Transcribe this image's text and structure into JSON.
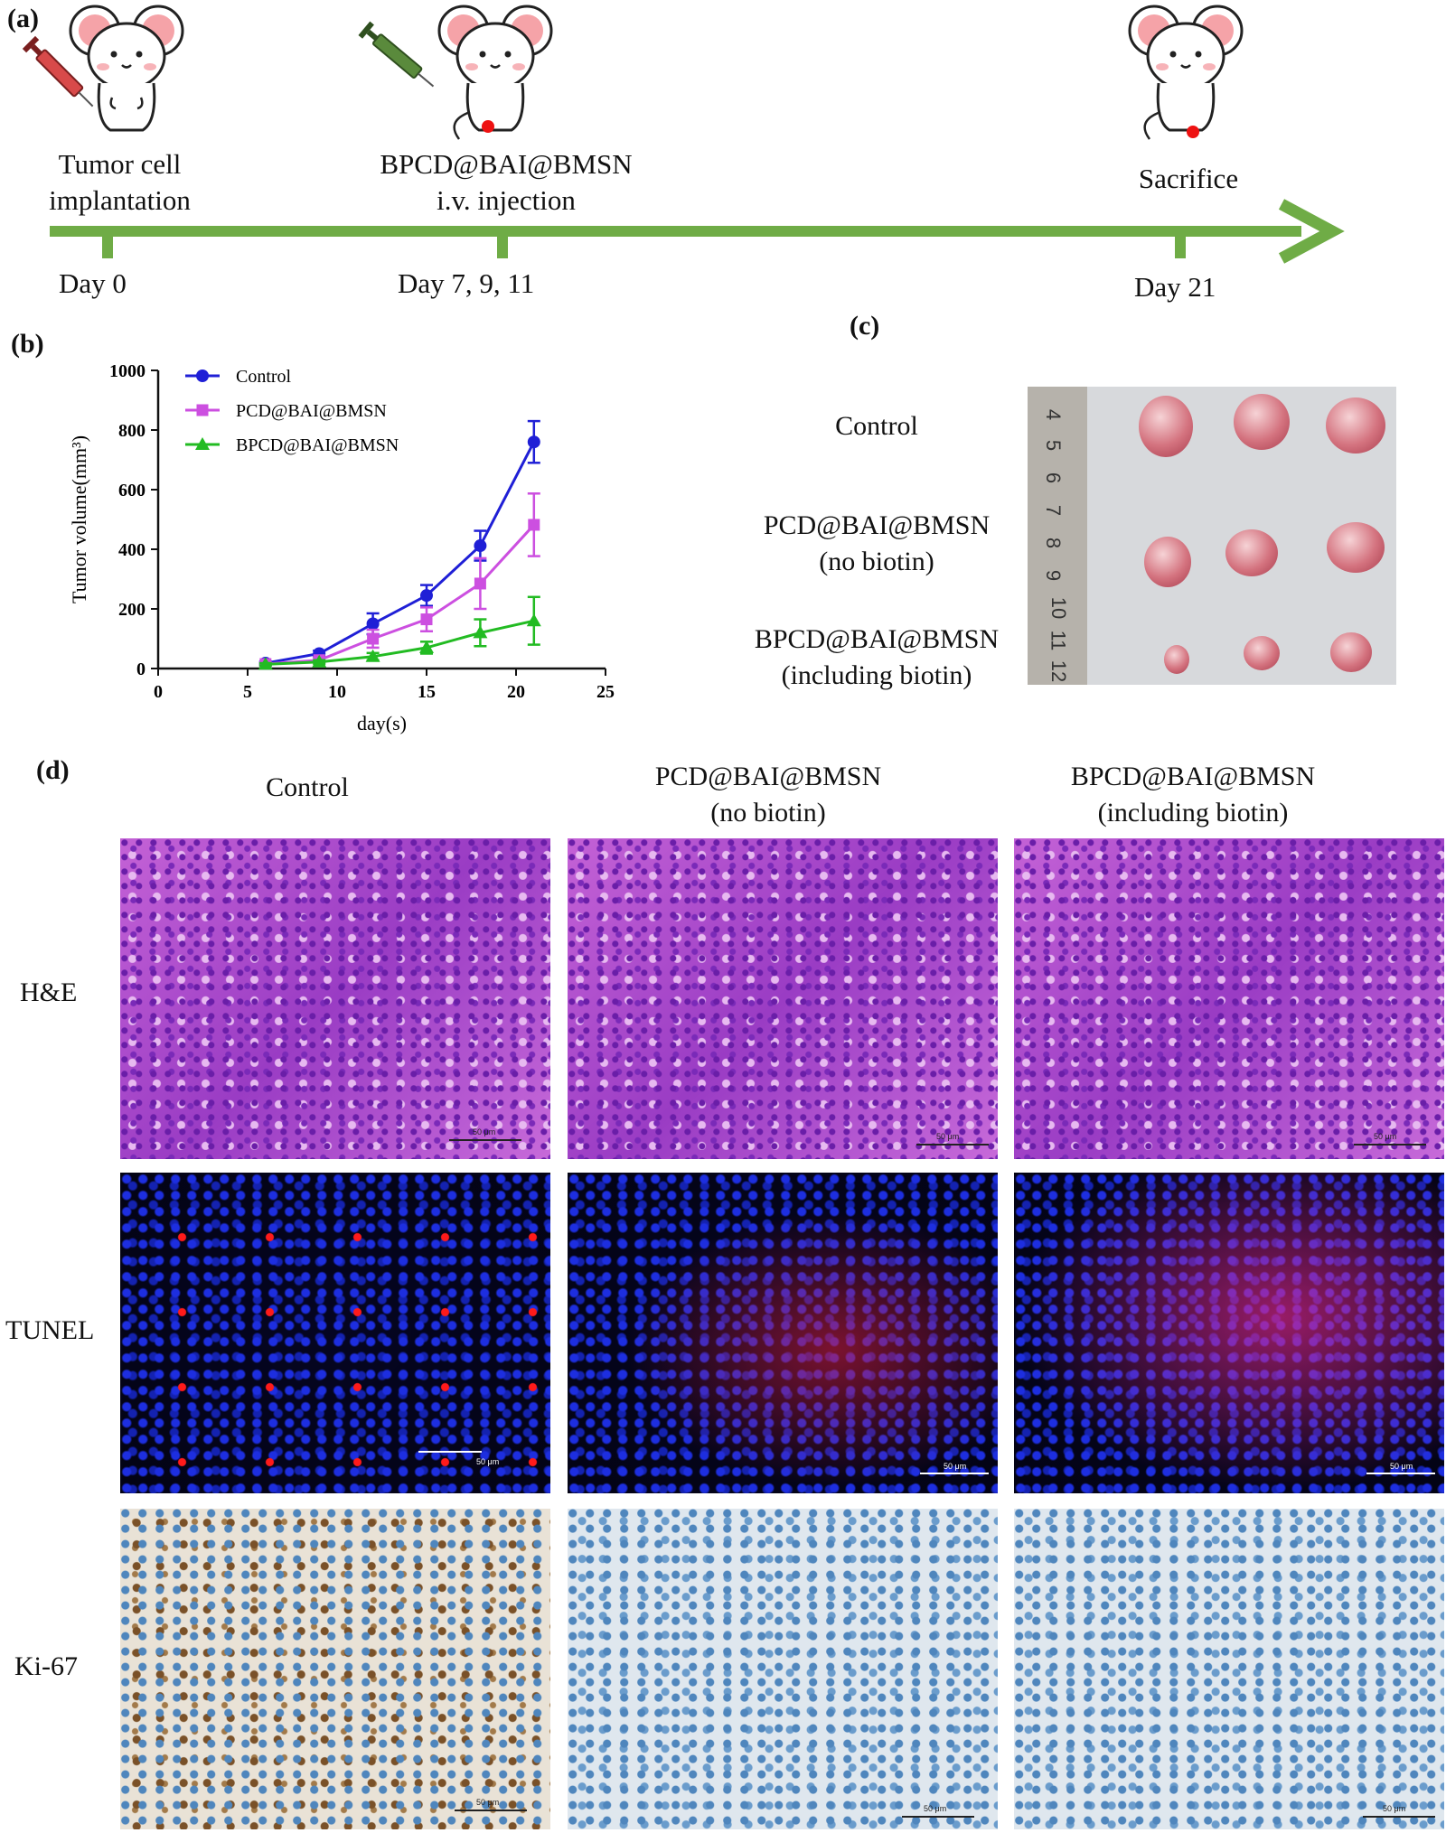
{
  "panel_labels": {
    "a": "(a)",
    "b": "(b)",
    "c": "(c)",
    "d": "(d)"
  },
  "timeline": {
    "events": [
      {
        "label_line1": "Tumor cell",
        "label_line2": "implantation",
        "day": "Day 0"
      },
      {
        "label_line1": "BPCD@BAI@BMSN",
        "label_line2": "i.v.  injection",
        "day": "Day 7, 9, 11"
      },
      {
        "label_line1": "Sacrifice",
        "label_line2": "",
        "day": "Day 21"
      }
    ],
    "colors": {
      "arrow": "#6fac46",
      "syringe_red": "#d84a4a",
      "syringe_green": "#5a8a3c",
      "tumor_dot": "#ee1111"
    }
  },
  "chart_data": {
    "type": "line",
    "xlabel": "day(s)",
    "ylabel": "Tumor volume(mm³)",
    "xlim": [
      0,
      25
    ],
    "ylim": [
      0,
      1000
    ],
    "x_ticks": [
      "0",
      "5",
      "10",
      "15",
      "20",
      "25"
    ],
    "y_ticks": [
      "0",
      "200",
      "400",
      "600",
      "800",
      "1000"
    ],
    "legend_position": "top-left",
    "series": [
      {
        "name": "Control",
        "color": "#1f1fd6",
        "marker": "circle",
        "x": [
          6,
          9,
          12,
          15,
          18,
          21
        ],
        "y": [
          18,
          50,
          150,
          245,
          412,
          760
        ],
        "err": [
          5,
          10,
          35,
          35,
          50,
          70
        ]
      },
      {
        "name": "PCD@BAI@BMSN",
        "color": "#cc4fe0",
        "marker": "square",
        "x": [
          6,
          9,
          12,
          15,
          18,
          21
        ],
        "y": [
          15,
          28,
          100,
          165,
          285,
          482
        ],
        "err": [
          5,
          8,
          30,
          40,
          85,
          105
        ]
      },
      {
        "name": "BPCD@BAI@BMSN",
        "color": "#22bb22",
        "marker": "triangle",
        "x": [
          6,
          9,
          12,
          15,
          18,
          21
        ],
        "y": [
          14,
          22,
          40,
          70,
          120,
          160
        ],
        "err": [
          4,
          6,
          12,
          20,
          45,
          80
        ]
      }
    ]
  },
  "panel_c": {
    "groups": [
      {
        "line1": "Control",
        "line2": ""
      },
      {
        "line1": "PCD@BAI@BMSN",
        "line2": "(no biotin)"
      },
      {
        "line1": "BPCD@BAI@BMSN",
        "line2": "(including biotin)"
      }
    ],
    "ruler_numbers": [
      "4",
      "5",
      "6",
      "7",
      "8",
      "9",
      "10",
      "11",
      "12"
    ]
  },
  "panel_d": {
    "columns": [
      {
        "line1": "Control",
        "line2": ""
      },
      {
        "line1": "PCD@BAI@BMSN",
        "line2": "(no biotin)"
      },
      {
        "line1": "BPCD@BAI@BMSN",
        "line2": "(including biotin)"
      }
    ],
    "rows": [
      "H&E",
      "TUNEL",
      "Ki-67"
    ],
    "scale_label": "50 μm"
  }
}
